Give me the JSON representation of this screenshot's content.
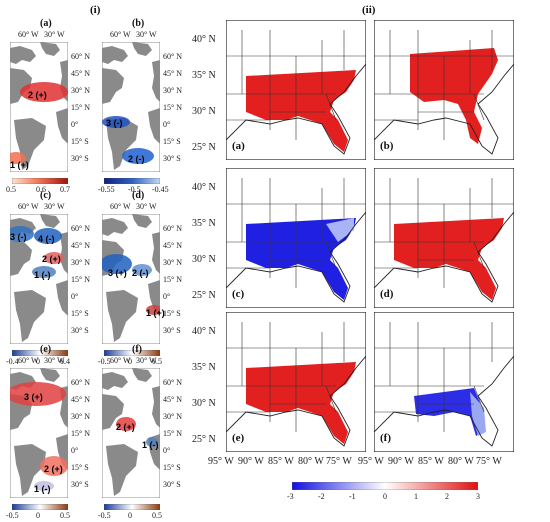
{
  "section_left_label": "(i)",
  "section_right_label": "(ii)",
  "small_panels": [
    {
      "id": "a",
      "label": "(a)",
      "annotations": [
        "2 (+)",
        "1 (+)"
      ]
    },
    {
      "id": "b",
      "label": "(b)",
      "annotations": [
        "3 (-)",
        "2 (-)"
      ]
    },
    {
      "id": "c",
      "label": "(c)",
      "annotations": [
        "3 (-)",
        "4 (-)",
        "2 (+)",
        "1 (-)"
      ]
    },
    {
      "id": "d",
      "label": "(d)",
      "annotations": [
        "3 (+)",
        "2 (-)",
        "1 (+)"
      ]
    },
    {
      "id": "e",
      "label": "(e)",
      "annotations": [
        "3 (+)",
        "2 (+)",
        "1 (-)"
      ]
    },
    {
      "id": "f",
      "label": "(f)",
      "annotations": [
        "2 (+)",
        "1 (-)"
      ]
    }
  ],
  "small_lon_ticks": [
    "60° W",
    "30° W"
  ],
  "small_lat_ticks": [
    "60° N",
    "45° N",
    "30° N",
    "15° N",
    "0°",
    "15° S",
    "30° S"
  ],
  "small_colorbars": [
    {
      "id": "a",
      "ticks": [
        "0.5",
        "0.6",
        "0.7"
      ],
      "color": "red"
    },
    {
      "id": "b",
      "ticks": [
        "-0.55",
        "-0.5",
        "-0.45"
      ],
      "color": "blue"
    },
    {
      "id": "cd",
      "ticks": [
        "-0.4",
        "0",
        "0.4"
      ],
      "color": "div"
    },
    {
      "id": "d",
      "ticks": [
        "-0.5",
        "0",
        "0.5"
      ],
      "color": "div"
    },
    {
      "id": "e",
      "ticks": [
        "-0.5",
        "0",
        "0.5"
      ],
      "color": "div"
    },
    {
      "id": "f",
      "ticks": [
        "-0.5",
        "0",
        "0.5"
      ],
      "color": "div"
    }
  ],
  "large_panels": [
    {
      "id": "a",
      "label": "(a)",
      "fill": "red"
    },
    {
      "id": "b",
      "label": "(b)",
      "fill": "red-north"
    },
    {
      "id": "c",
      "label": "(c)",
      "fill": "blue"
    },
    {
      "id": "d",
      "label": "(d)",
      "fill": "red"
    },
    {
      "id": "e",
      "label": "(e)",
      "fill": "red"
    },
    {
      "id": "f",
      "label": "(f)",
      "fill": "blue-south"
    }
  ],
  "large_lat_ticks": [
    "40° N",
    "35° N",
    "30° N",
    "25° N"
  ],
  "large_lon_ticks": [
    "95° W",
    "90° W",
    "85° W",
    "80° W",
    "75° W"
  ],
  "main_colorbar": {
    "ticks": [
      "-3",
      "-2",
      "-1",
      "0",
      "1",
      "2",
      "3"
    ],
    "colors": {
      "neg": "#1010e0",
      "mid": "#ffffff",
      "pos": "#e01010"
    }
  }
}
